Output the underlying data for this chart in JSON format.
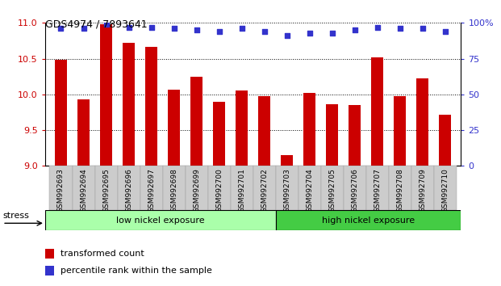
{
  "title": "GDS4974 / 7893641",
  "categories": [
    "GSM992693",
    "GSM992694",
    "GSM992695",
    "GSM992696",
    "GSM992697",
    "GSM992698",
    "GSM992699",
    "GSM992700",
    "GSM992701",
    "GSM992702",
    "GSM992703",
    "GSM992704",
    "GSM992705",
    "GSM992706",
    "GSM992707",
    "GSM992708",
    "GSM992709",
    "GSM992710"
  ],
  "bar_values": [
    10.48,
    9.93,
    10.98,
    10.72,
    10.67,
    10.07,
    10.25,
    9.9,
    10.05,
    9.98,
    9.15,
    10.02,
    9.86,
    9.85,
    10.52,
    9.98,
    10.22,
    9.72
  ],
  "dot_values": [
    96,
    96,
    99,
    97,
    97,
    96,
    95,
    94,
    96,
    94,
    91,
    93,
    93,
    95,
    97,
    96,
    96,
    94
  ],
  "ylim_left": [
    9,
    11
  ],
  "ylim_right": [
    0,
    100
  ],
  "yticks_left": [
    9,
    9.5,
    10,
    10.5,
    11
  ],
  "yticks_right": [
    0,
    25,
    50,
    75,
    100
  ],
  "bar_color": "#cc0000",
  "dot_color": "#3333cc",
  "background_color": "#ffffff",
  "plot_bg_color": "#ffffff",
  "grid_color": "#000000",
  "low_group_label": "low nickel exposure",
  "high_group_label": "high nickel exposure",
  "low_group_color": "#aaffaa",
  "high_group_color": "#44cc44",
  "stress_label": "stress",
  "legend_bar_label": "transformed count",
  "legend_dot_label": "percentile rank within the sample",
  "bar_width": 0.55,
  "tick_label_color": "#333333",
  "left_tick_color": "#cc0000",
  "right_tick_color": "#3333cc",
  "ymin": 9
}
